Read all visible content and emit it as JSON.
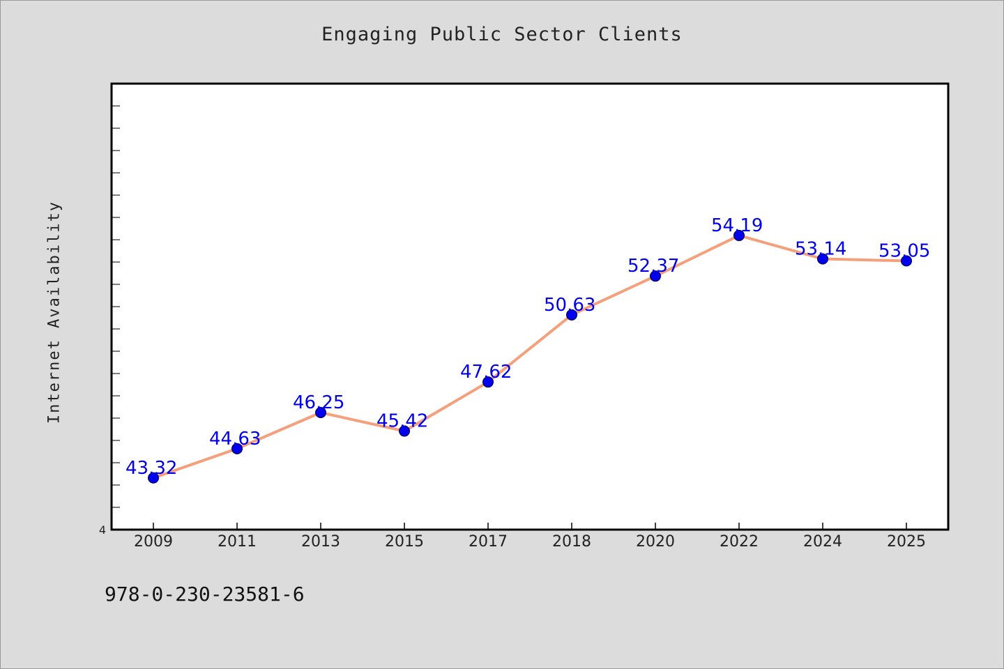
{
  "chart_data": {
    "type": "line",
    "title": "Engaging Public Sector Clients",
    "xlabel": "",
    "ylabel": "Internet Availability",
    "categories": [
      "2009",
      "2011",
      "2013",
      "2015",
      "2017",
      "2018",
      "2020",
      "2022",
      "2024",
      "2025"
    ],
    "series": [
      {
        "values": [
          43.32,
          44.63,
          46.25,
          45.42,
          47.62,
          50.63,
          52.37,
          54.19,
          53.14,
          53.05
        ]
      }
    ],
    "data_labels": [
      "43.32",
      "44.63",
      "46.25",
      "45.42",
      "47.62",
      "50.63",
      "52.37",
      "54.19",
      "53.14",
      "53.05"
    ],
    "ylim": [
      41,
      61
    ],
    "y_tick_labels": [
      "4"
    ],
    "grid": false,
    "legend": "none",
    "colors": {
      "line": "#f4a07c",
      "marker": "#0000ee",
      "label": "#0000ee",
      "background": "#dcdcdc",
      "plot_area": "#ffffff"
    }
  },
  "footer": {
    "code": "978-0-230-23581-6"
  }
}
